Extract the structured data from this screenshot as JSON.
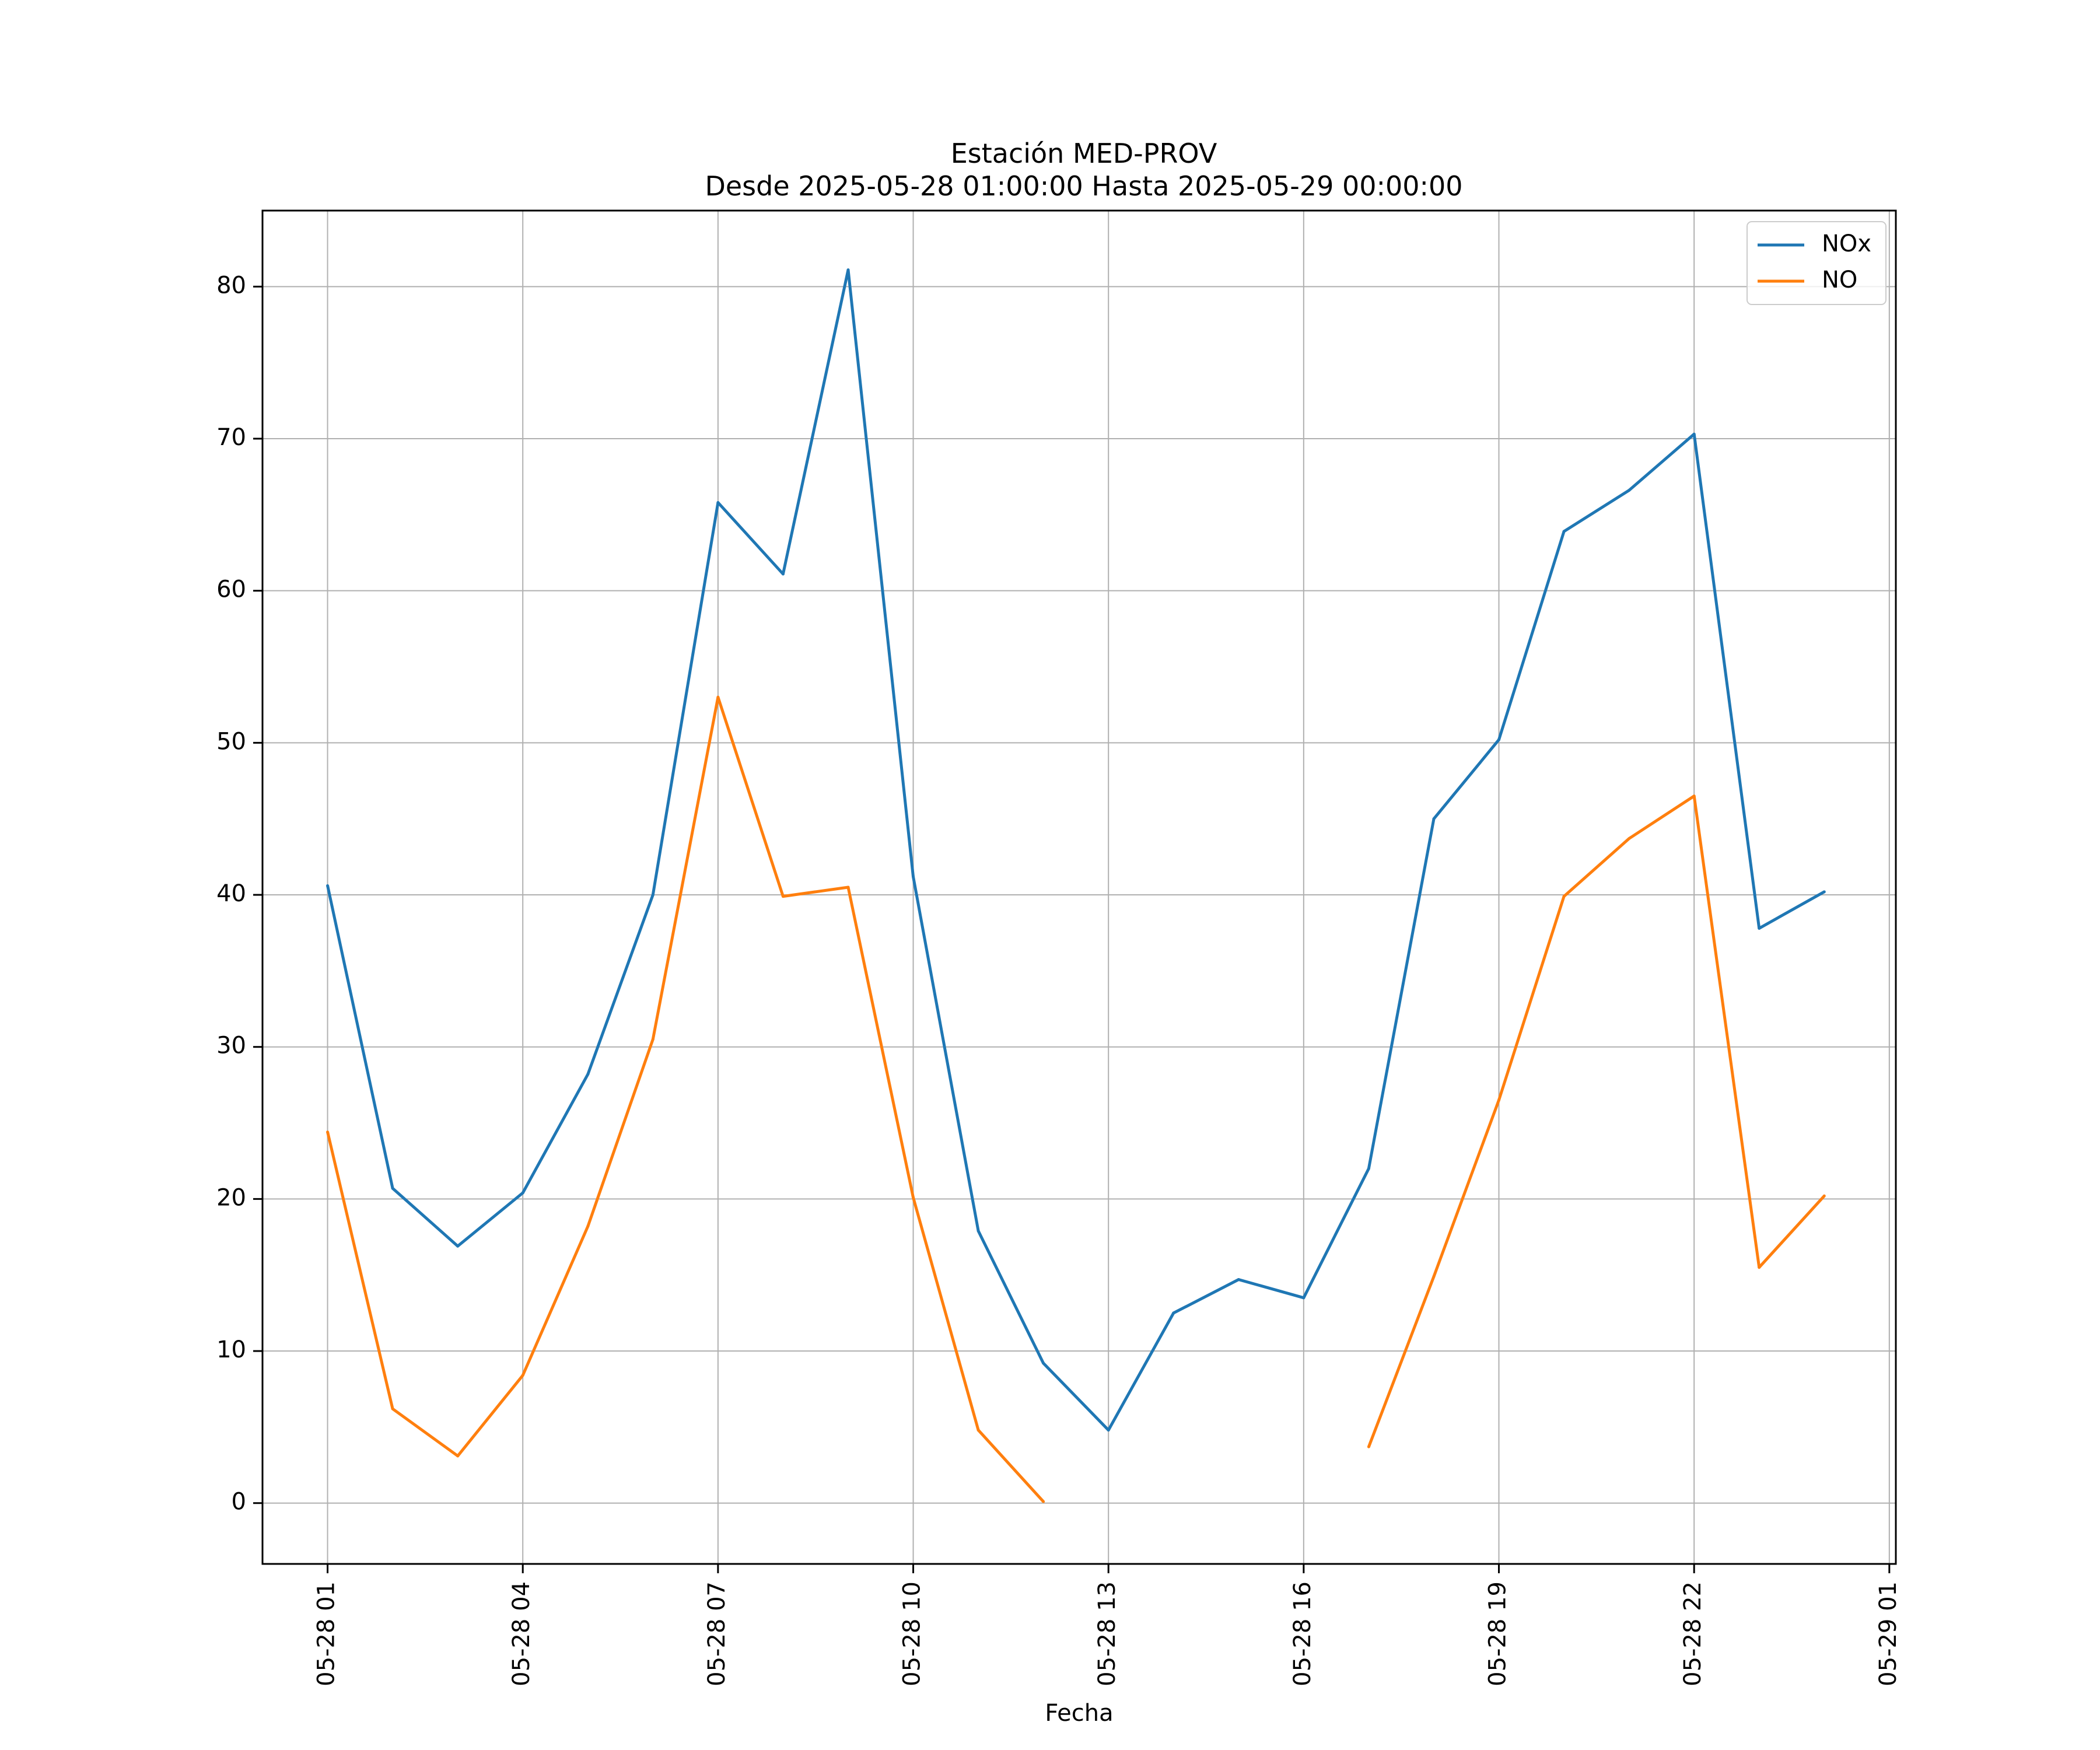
{
  "chart_data": {
    "type": "line",
    "title": "Estación MED-PROV",
    "subtitle": "Desde 2025-05-28 01:00:00 Hasta 2025-05-29 00:00:00",
    "xlabel": "Fecha",
    "ylabel": "",
    "x": [
      "2025-05-28 01:00",
      "2025-05-28 02:00",
      "2025-05-28 03:00",
      "2025-05-28 04:00",
      "2025-05-28 05:00",
      "2025-05-28 06:00",
      "2025-05-28 07:00",
      "2025-05-28 08:00",
      "2025-05-28 09:00",
      "2025-05-28 10:00",
      "2025-05-28 11:00",
      "2025-05-28 12:00",
      "2025-05-28 13:00",
      "2025-05-28 14:00",
      "2025-05-28 15:00",
      "2025-05-28 16:00",
      "2025-05-28 17:00",
      "2025-05-28 18:00",
      "2025-05-28 19:00",
      "2025-05-28 20:00",
      "2025-05-28 21:00",
      "2025-05-28 22:00",
      "2025-05-28 23:00",
      "2025-05-29 00:00"
    ],
    "xlim": [
      "2025-05-28 00:00",
      "2025-05-29 01:06"
    ],
    "ylim": [
      -4,
      85
    ],
    "x_ticks": [
      "05-28 01",
      "05-28 04",
      "05-28 07",
      "05-28 10",
      "05-28 13",
      "05-28 16",
      "05-28 19",
      "05-28 22",
      "05-29 01"
    ],
    "y_ticks": [
      0,
      10,
      20,
      30,
      40,
      50,
      60,
      70,
      80
    ],
    "grid": true,
    "legend_position": "top-right",
    "series": [
      {
        "name": "NOx",
        "color": "#1f77b4",
        "values": [
          40.6,
          20.7,
          16.9,
          20.4,
          28.2,
          40.0,
          65.8,
          61.1,
          81.1,
          41.2,
          17.9,
          9.2,
          4.8,
          12.5,
          14.7,
          13.5,
          22.0,
          45.0,
          50.2,
          63.9,
          66.6,
          70.3,
          37.8,
          40.2
        ]
      },
      {
        "name": "NO",
        "color": "#ff7f0e",
        "values": [
          24.4,
          6.2,
          3.1,
          8.4,
          18.2,
          30.5,
          53.0,
          39.9,
          40.5,
          20.1,
          4.8,
          0.1,
          null,
          null,
          null,
          null,
          3.7,
          14.9,
          26.5,
          39.9,
          43.7,
          46.5,
          15.5,
          20.2
        ]
      }
    ]
  }
}
